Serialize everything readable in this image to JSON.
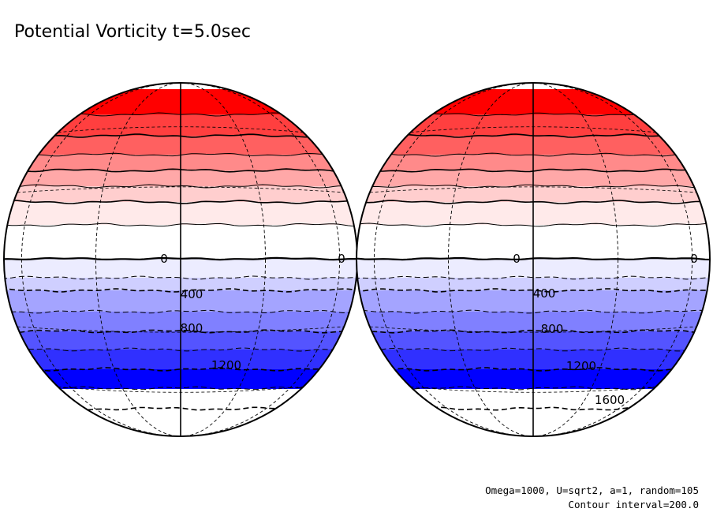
{
  "chart_data": {
    "type": "contour",
    "title": "Potential Vorticity t=5.0sec",
    "projection": "orthographic, two hemispheres side by side",
    "field": "potential vorticity",
    "contour_interval": 200.0,
    "band_levels": [
      -800,
      -600,
      -400,
      -200,
      0,
      200,
      400,
      600,
      800,
      1000,
      1200,
      1400,
      1600
    ],
    "band_colors": [
      "#ff0000",
      "#ff3f3f",
      "#ff6060",
      "#ff8a8a",
      "#ffa8a8",
      "#ffcece",
      "#ffeaea",
      "#ffffff",
      "#ececff",
      "#cfcfff",
      "#a4a4ff",
      "#8080ff",
      "#5454ff",
      "#3030ff",
      "#0000ff"
    ],
    "globes": [
      {
        "name": "left",
        "labels": [
          {
            "text": "0",
            "value": 0
          },
          {
            "text": "0",
            "value": 0
          },
          {
            "text": "400",
            "value": 400
          },
          {
            "text": "800",
            "value": 800
          },
          {
            "text": "1200",
            "value": 1200
          }
        ]
      },
      {
        "name": "right",
        "labels": [
          {
            "text": "0",
            "value": 0
          },
          {
            "text": "0",
            "value": 0
          },
          {
            "text": "400",
            "value": 400
          },
          {
            "text": "800",
            "value": 800
          },
          {
            "text": "1200",
            "value": 1200
          },
          {
            "text": "1600",
            "value": 1600
          }
        ]
      }
    ]
  },
  "info": {
    "params": "Omega=1000, U=sqrt2, a=1, random=105",
    "contour_interval": "Contour interval=200.0"
  }
}
